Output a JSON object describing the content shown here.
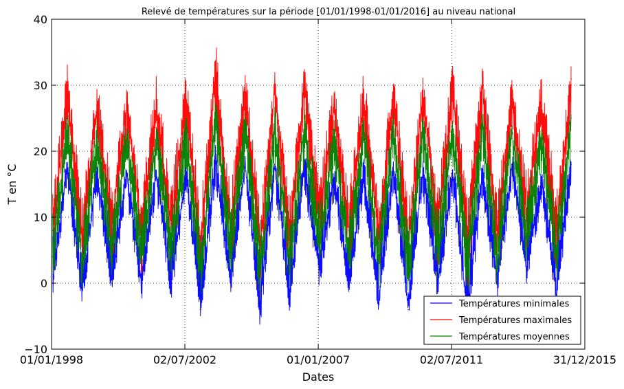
{
  "chart_data": {
    "type": "line",
    "title": "Relevé de températures sur la période [01/01/1998-01/01/2016] au niveau national",
    "xlabel": "Dates",
    "ylabel": "T en °C",
    "x_range": [
      "1998-01-01",
      "2015-12-31"
    ],
    "ylim": [
      -10,
      40
    ],
    "y_ticks": [
      "−10",
      "0",
      "10",
      "20",
      "30",
      "40"
    ],
    "x_ticks": [
      {
        "label": "01/01/1998",
        "date": "1998-01-01"
      },
      {
        "label": "02/07/2002",
        "date": "2002-07-02"
      },
      {
        "label": "01/01/2007",
        "date": "2007-01-01"
      },
      {
        "label": "02/07/2011",
        "date": "2011-07-02"
      },
      {
        "label": "31/12/2015",
        "date": "2015-12-31"
      }
    ],
    "grid": true,
    "legend_position": "bottom-right",
    "x": [
      "1998-01-15",
      "1998-07-15",
      "1999-01-15",
      "1999-07-15",
      "2000-01-15",
      "2000-07-15",
      "2001-01-15",
      "2001-07-15",
      "2002-01-15",
      "2002-07-15",
      "2003-01-15",
      "2003-07-15",
      "2004-01-15",
      "2004-07-15",
      "2005-01-15",
      "2005-07-15",
      "2006-01-15",
      "2006-07-15",
      "2007-01-15",
      "2007-07-15",
      "2008-01-15",
      "2008-07-15",
      "2009-01-15",
      "2009-07-15",
      "2010-01-15",
      "2010-07-15",
      "2011-01-15",
      "2011-07-15",
      "2012-01-15",
      "2012-07-15",
      "2013-01-15",
      "2013-07-15",
      "2014-01-15",
      "2014-07-15",
      "2015-01-15",
      "2015-07-15"
    ],
    "series": [
      {
        "name": "Températures minimales",
        "color": "#0000ff",
        "values": [
          0,
          18,
          -1,
          17,
          0,
          17,
          0,
          17,
          0,
          17,
          -4,
          19,
          0,
          18,
          -3,
          18,
          -2,
          18,
          2,
          16,
          0,
          17,
          -3,
          17,
          -4,
          17,
          0,
          17,
          -5,
          17,
          0,
          18,
          2,
          16,
          -2,
          18
        ],
        "envelope": {
          "min": [
            -2,
            14,
            -4,
            13,
            -2,
            13,
            -3,
            13,
            -3,
            13,
            -6,
            15,
            -2,
            14,
            -7,
            14,
            -5,
            14,
            -1,
            12,
            -2,
            13,
            -5,
            13,
            -6,
            13,
            -3,
            13,
            -8,
            13,
            -3,
            14,
            -1,
            12,
            -4,
            14
          ],
          "max": [
            8,
            19,
            7,
            19,
            9,
            18,
            8,
            18,
            9,
            19,
            7,
            21,
            8,
            20,
            6,
            20,
            7,
            20,
            10,
            18,
            8,
            19,
            7,
            19,
            6,
            19,
            9,
            19,
            5,
            19,
            8,
            20,
            11,
            18,
            8,
            20
          ]
        }
      },
      {
        "name": "Températures maximales",
        "color": "#ff0000",
        "values": [
          8,
          28,
          7,
          27,
          9,
          27,
          8,
          27,
          9,
          28,
          6,
          33,
          8,
          29,
          6,
          30,
          7,
          30,
          10,
          27,
          8,
          28,
          7,
          29,
          6,
          29,
          9,
          29,
          7,
          30,
          8,
          28,
          11,
          27,
          8,
          31
        ],
        "envelope": {
          "min": [
            2,
            22,
            0,
            21,
            2,
            21,
            1,
            21,
            2,
            21,
            -1,
            24,
            2,
            22,
            -1,
            22,
            0,
            23,
            3,
            21,
            1,
            22,
            0,
            22,
            -1,
            22,
            2,
            22,
            -1,
            22,
            1,
            22,
            4,
            21,
            1,
            23
          ],
          "max": [
            14,
            34,
            13,
            31,
            15,
            30,
            14,
            32,
            15,
            33,
            12,
            37,
            14,
            33,
            12,
            32,
            13,
            34,
            16,
            31,
            14,
            33,
            13,
            33,
            12,
            32,
            15,
            34,
            13,
            34,
            14,
            32,
            17,
            32,
            14,
            33
          ]
        }
      },
      {
        "name": "Températures moyennes",
        "color": "#008000",
        "values": [
          4,
          23,
          3,
          22,
          5,
          22,
          4,
          22,
          5,
          22,
          2,
          26,
          4,
          24,
          2,
          24,
          3,
          24,
          6,
          22,
          4,
          23,
          3,
          23,
          2,
          23,
          5,
          23,
          2,
          24,
          4,
          23,
          7,
          22,
          4,
          25
        ],
        "envelope": {
          "min": [
            0,
            18,
            -2,
            17,
            0,
            17,
            -1,
            17,
            0,
            17,
            -3,
            20,
            0,
            18,
            -3,
            18,
            -2,
            18,
            1,
            17,
            -1,
            18,
            -2,
            18,
            -3,
            18,
            0,
            18,
            -3,
            18,
            -1,
            18,
            2,
            17,
            -1,
            19
          ],
          "max": [
            11,
            27,
            10,
            25,
            12,
            25,
            11,
            25,
            12,
            26,
            9,
            29,
            11,
            27,
            9,
            27,
            10,
            27,
            13,
            25,
            11,
            26,
            10,
            26,
            9,
            26,
            12,
            27,
            9,
            27,
            11,
            26,
            14,
            25,
            11,
            26
          ]
        }
      }
    ]
  }
}
